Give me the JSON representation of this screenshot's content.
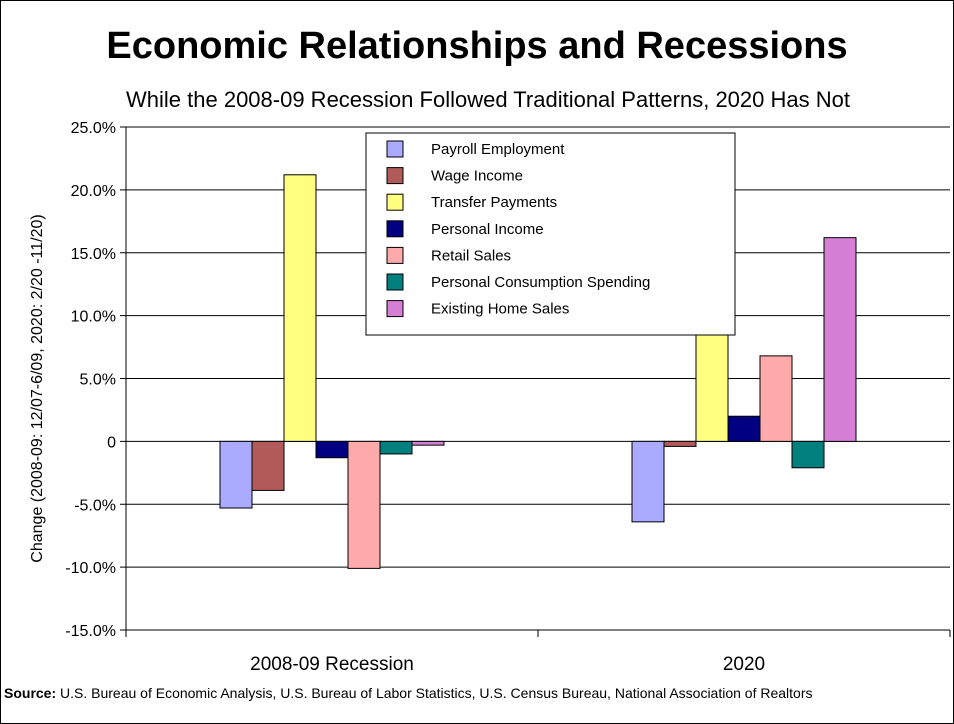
{
  "chart_data": {
    "type": "bar",
    "title": "Economic Relationships and Recessions",
    "subtitle": "While the 2008-09 Recession Followed Traditional Patterns, 2020 Has Not",
    "ylabel": "Change (2008-09: 12/07-6/09, 2020: 2/20 -11/20)",
    "xlabel": "",
    "categories": [
      "2008-09 Recession",
      "2020"
    ],
    "ylim": [
      -15,
      25
    ],
    "yticks": [
      -15,
      -10,
      -5,
      0,
      5,
      10,
      15,
      20,
      25
    ],
    "ytick_labels": [
      "-15.0%",
      "-10.0%",
      "-5.0%",
      "0",
      "5.0%",
      "10.0%",
      "15.0%",
      "20.0%",
      "25.0%"
    ],
    "grid": true,
    "legend_position": "top-center",
    "series": [
      {
        "name": "Payroll Employment",
        "color": "#aaaaff",
        "values": [
          -5.3,
          -6.4
        ]
      },
      {
        "name": "Wage Income",
        "color": "#b05a5a",
        "values": [
          -3.9,
          -0.4
        ]
      },
      {
        "name": "Transfer Payments",
        "color": "#ffff80",
        "values": [
          21.2,
          15.9
        ]
      },
      {
        "name": "Personal Income",
        "color": "#000080",
        "values": [
          -1.3,
          2.0
        ]
      },
      {
        "name": "Retail Sales",
        "color": "#ffaaaa",
        "values": [
          -10.1,
          6.8
        ]
      },
      {
        "name": "Personal Consumption Spending",
        "color": "#007f7f",
        "values": [
          -1.0,
          -2.1
        ]
      },
      {
        "name": "Existing Home Sales",
        "color": "#d580d5",
        "values": [
          -0.3,
          16.2
        ]
      }
    ]
  },
  "source": {
    "label": "Source:",
    "text": "U.S. Bureau of Economic Analysis, U.S. Bureau of Labor Statistics, U.S. Census Bureau, National Association of Realtors"
  }
}
